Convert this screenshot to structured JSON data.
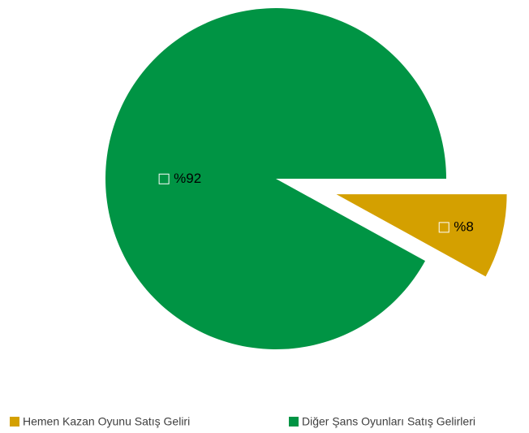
{
  "chart_data": {
    "type": "pie",
    "categories": [
      "Hemen Kazan Oyunu Satış Geliri",
      "Diğer Şans Oyunları Satış Gelirleri"
    ],
    "values": [
      8,
      92
    ],
    "value_labels": [
      "%8",
      "%92"
    ],
    "colors": [
      "#d4a000",
      "#009444"
    ],
    "legend": "bottom"
  }
}
